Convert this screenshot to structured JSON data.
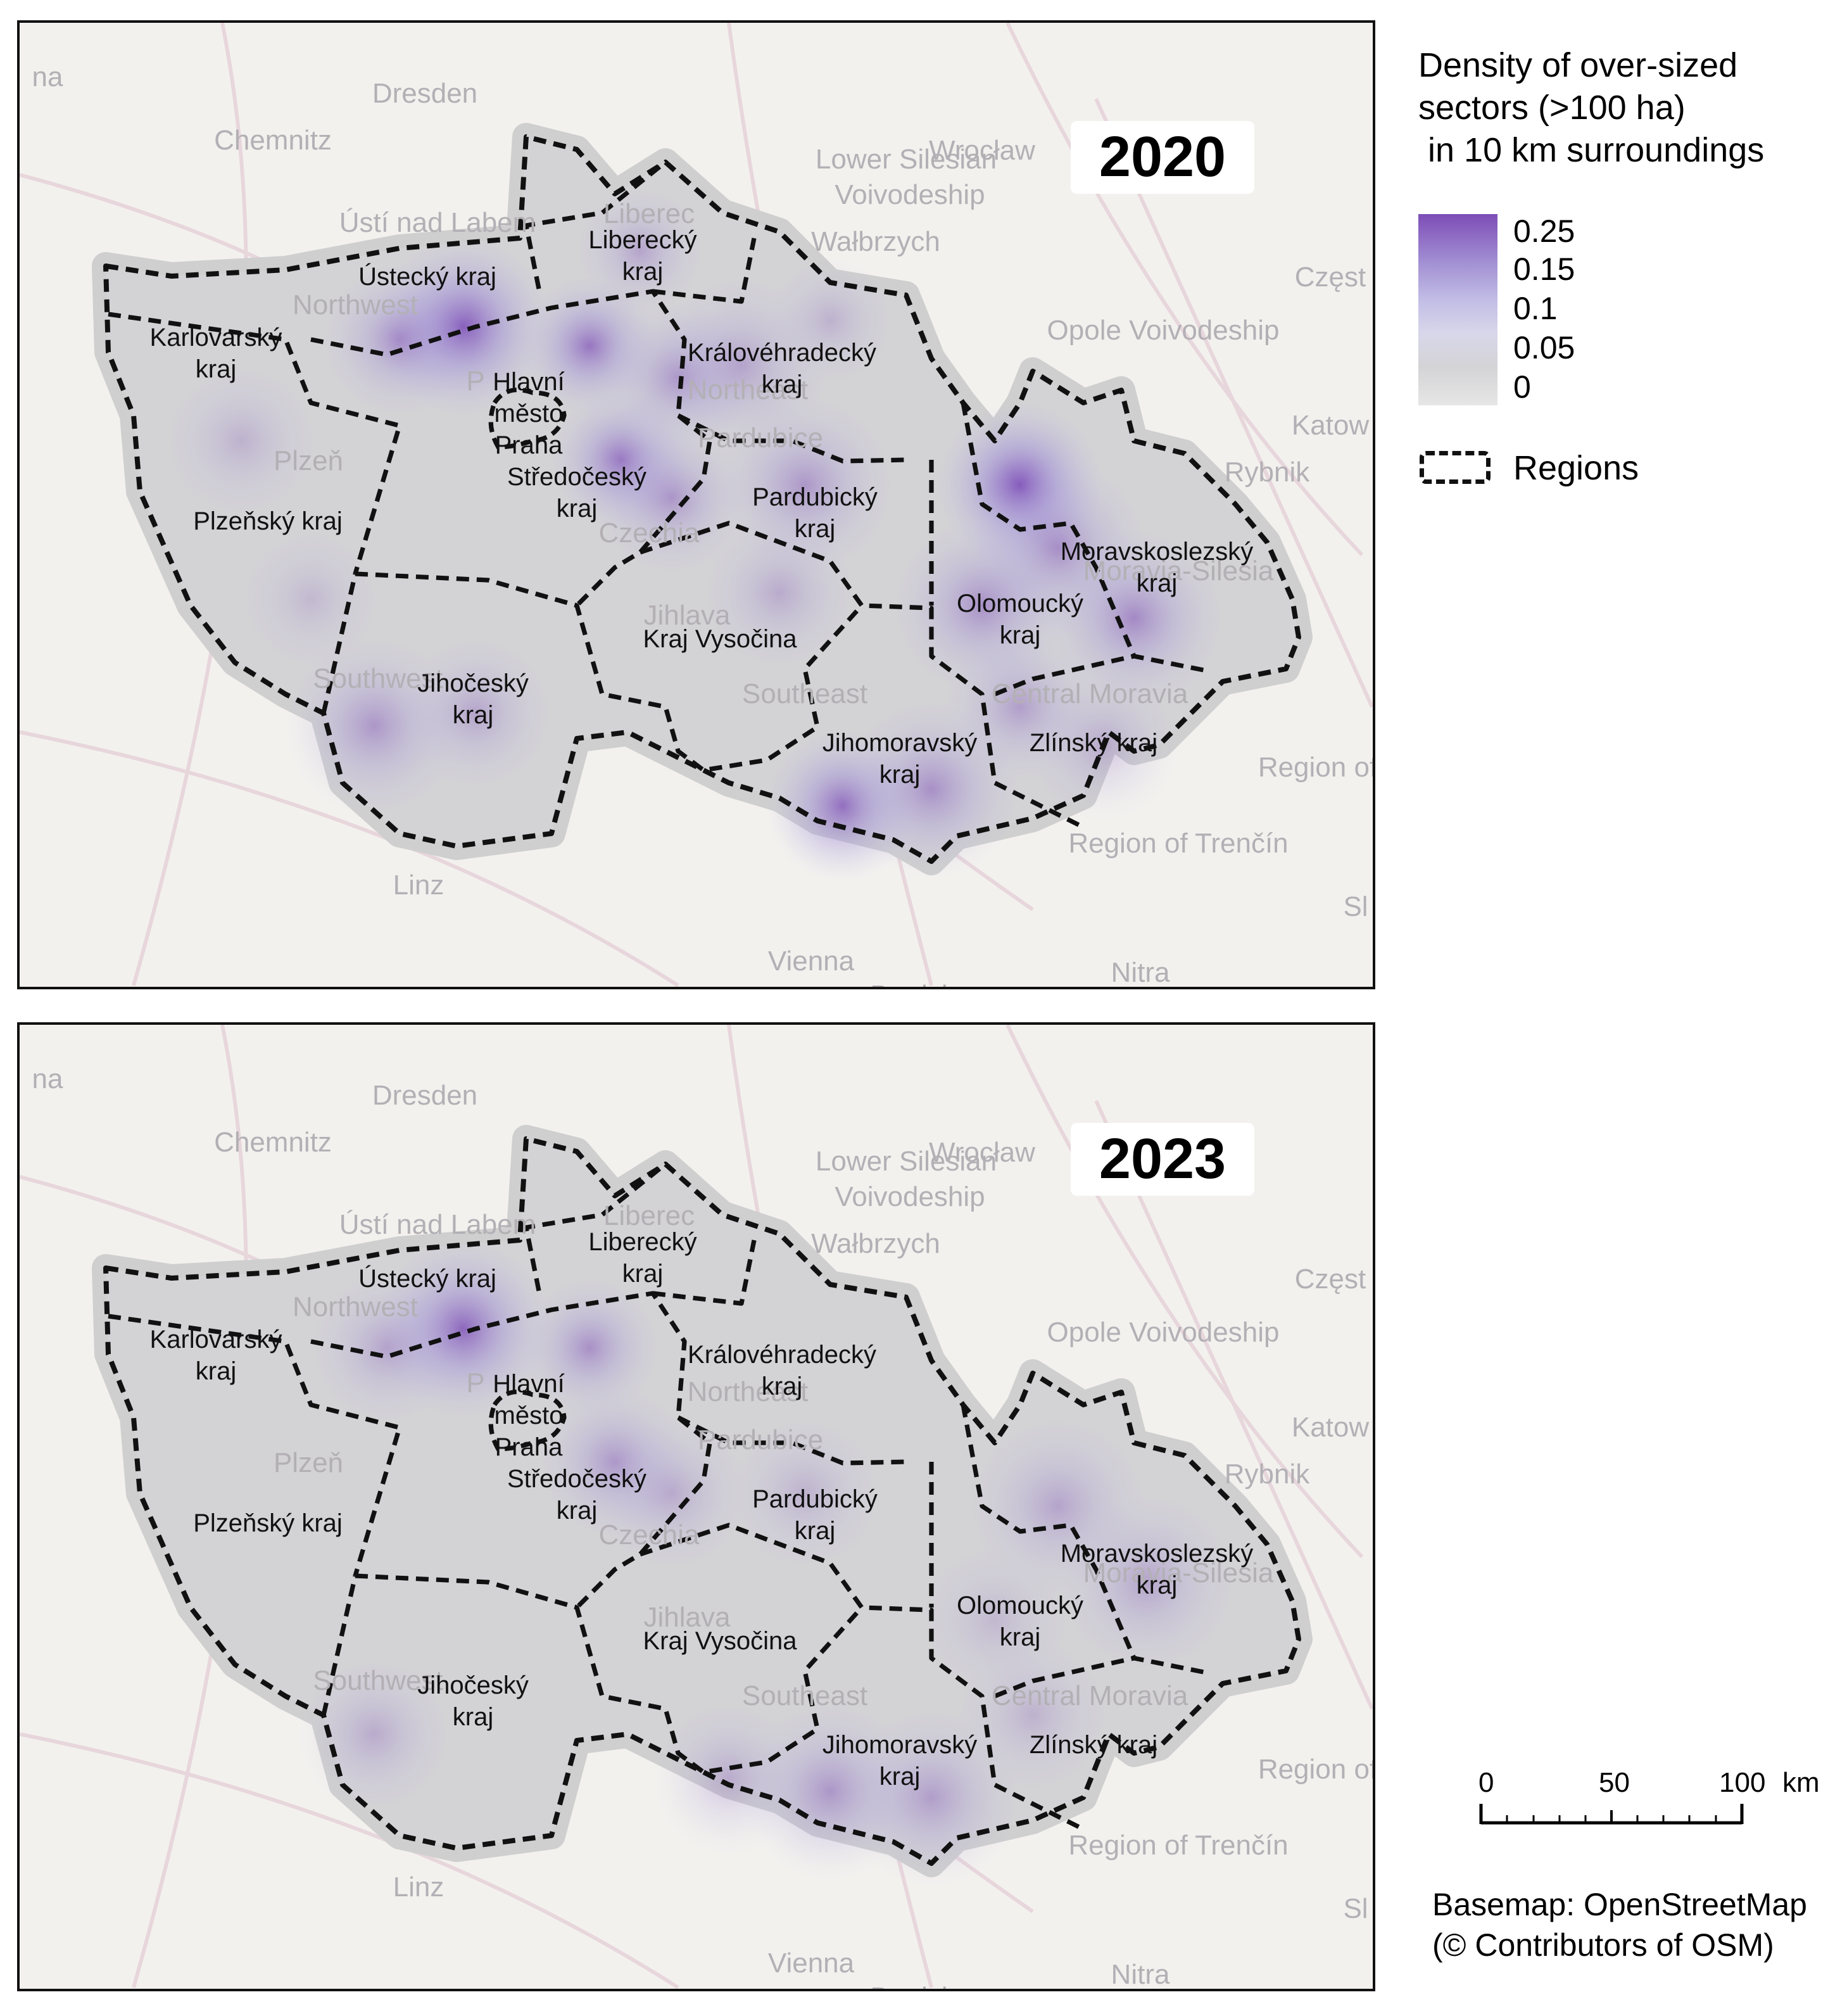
{
  "legend": {
    "title_lines": [
      "Density of over-sized",
      "sectors (>100 ha)",
      " in 10 km surroundings"
    ],
    "ramp_labels": [
      "0.25",
      "0.15",
      "0.1",
      "0.05",
      "0"
    ],
    "colors": {
      "high": "#7d4db7",
      "mid": "#c2bde6",
      "low": "#d4d4d6"
    },
    "regions_label": "Regions"
  },
  "panels": [
    {
      "year": "2020"
    },
    {
      "year": "2023"
    }
  ],
  "basemap_labels": {
    "dresden": "Dresden",
    "chemnitz": "Chemnitz",
    "wroclaw": "Wrocław",
    "lower_silesian": "Lower Silesian",
    "voivodeship": "Voivodeship",
    "walbrzych": "Wałbrzych",
    "czest": "Częst",
    "opole": "Opole Voivodeship",
    "katow": "Katow",
    "rybnik": "Rybnik",
    "usti": "Ústí nad Labem",
    "liberec": "Liberec",
    "plzen": "Plzeň",
    "czechia": "Czechia",
    "jihlava": "Jihlava",
    "southeast": "Southeast",
    "southwest": "Southwest",
    "northwest": "Northwest",
    "northeast": "Northeast",
    "pardubice": "Pardubice",
    "central_moravia": "Central Moravia",
    "moravia_silesia": "Moravia-Silesia",
    "region_of": "Region of",
    "trencin": "Region of Trenčín",
    "linz": "Linz",
    "vienna": "Vienna",
    "nitra": "Nitra",
    "bratislava": "Bratislava",
    "na": "na",
    "sl": "Sl",
    "p": "P"
  },
  "regions": {
    "karlovarsky": [
      "Karlovarský",
      "kraj"
    ],
    "ustecky": [
      "Ústecký kraj"
    ],
    "liberecky": [
      "Liberecký",
      "kraj"
    ],
    "kralovehradecky": [
      "Královéhradecký",
      "kraj"
    ],
    "praha": [
      "Hlavní",
      "město",
      "Praha"
    ],
    "stredocesky": [
      "Středočeský",
      "kraj"
    ],
    "plzensky": [
      "Plzeňský kraj"
    ],
    "pardubicky": [
      "Pardubický",
      "kraj"
    ],
    "moravskoslezsky": [
      "Moravskoslezský",
      "kraj"
    ],
    "olomoucky": [
      "Olomoucký",
      "kraj"
    ],
    "vysocina": [
      "Kraj Vysočina"
    ],
    "jihocesky": [
      "Jihočeský",
      "kraj"
    ],
    "jihomoravsky": [
      "Jihomoravský",
      "kraj"
    ],
    "zlinsky": [
      "Zlínský kraj"
    ]
  },
  "scale_bar": {
    "labels": [
      "0",
      "50",
      "100"
    ],
    "unit": "km"
  },
  "credit": {
    "line1": "Basemap: OpenStreetMap",
    "line2": "(© Contributors of OSM)"
  }
}
